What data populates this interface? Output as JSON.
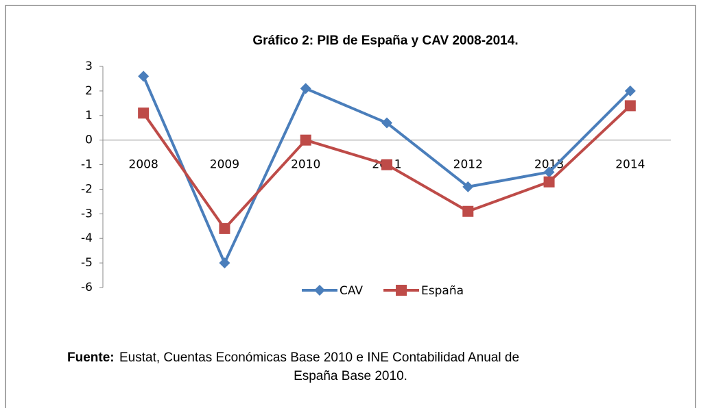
{
  "chart_data": {
    "type": "line",
    "title": "Gráfico 2: PIB de España y CAV 2008-2014.",
    "categories": [
      "2008",
      "2009",
      "2010",
      "2011",
      "2012",
      "2013",
      "2014"
    ],
    "series": [
      {
        "name": "CAV",
        "color": "#4a7ebb",
        "marker": "diamond",
        "values": [
          2.6,
          -5.0,
          2.1,
          0.7,
          -1.9,
          -1.3,
          2.0
        ]
      },
      {
        "name": "España",
        "color": "#be4b48",
        "marker": "square",
        "values": [
          1.1,
          -3.6,
          0.0,
          -1.0,
          -2.9,
          -1.7,
          1.4
        ]
      }
    ],
    "ylim": [
      -6,
      3
    ],
    "yticks": [
      -6,
      -5,
      -4,
      -3,
      -2,
      -1,
      0,
      1,
      2,
      3
    ],
    "grid": false,
    "legend": "bottom"
  },
  "source": {
    "label": "Fuente:",
    "lines": [
      "Eustat, Cuentas Económicas Base 2010 e INE Contabilidad Anual de",
      "España Base 2010."
    ]
  }
}
